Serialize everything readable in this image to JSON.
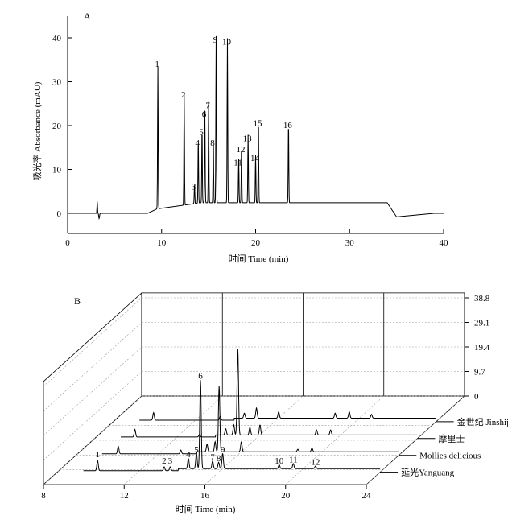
{
  "chart_data": [
    {
      "type": "line",
      "panel_label": "A",
      "xlabel": "时间 Time (min)",
      "ylabel": "吸光率 Absorbance (mAU)",
      "xlim": [
        0,
        40
      ],
      "ylim": [
        -5,
        45
      ],
      "x_ticks": [
        "0",
        "10",
        "20",
        "30",
        "40"
      ],
      "y_ticks": [
        "0",
        "10",
        "20",
        "30",
        "40"
      ],
      "peaks": [
        {
          "label": "1",
          "t": 9.6,
          "h": 32.5
        },
        {
          "label": "2",
          "t": 12.4,
          "h": 25.5
        },
        {
          "label": "3",
          "t": 13.5,
          "h": 4.5
        },
        {
          "label": "4",
          "t": 13.9,
          "h": 14.5
        },
        {
          "label": "5",
          "t": 14.3,
          "h": 17
        },
        {
          "label": "6",
          "t": 14.6,
          "h": 21
        },
        {
          "label": "7",
          "t": 15.0,
          "h": 23
        },
        {
          "label": "8",
          "t": 15.5,
          "h": 14.5
        },
        {
          "label": "9",
          "t": 15.8,
          "h": 38
        },
        {
          "label": "10",
          "t": 17.0,
          "h": 37.5
        },
        {
          "label": "11",
          "t": 18.2,
          "h": 10
        },
        {
          "label": "12",
          "t": 18.5,
          "h": 13
        },
        {
          "label": "13",
          "t": 19.2,
          "h": 15.5
        },
        {
          "label": "14",
          "t": 20.0,
          "h": 11
        },
        {
          "label": "15",
          "t": 20.3,
          "h": 19
        },
        {
          "label": "16",
          "t": 23.5,
          "h": 18.5
        }
      ]
    },
    {
      "type": "line",
      "panel_label": "B",
      "xlabel": "时间 Time (min)",
      "xlim": [
        8,
        24
      ],
      "x_ticks": [
        "8",
        "12",
        "16",
        "20",
        "24"
      ],
      "z_ticks": [
        "0",
        "9.7",
        "19.4",
        "29.1",
        "38.8"
      ],
      "series": [
        {
          "name": "延光Yanguang",
          "peaks": [
            {
              "label": "1",
              "t": 10.0,
              "h": 4
            },
            {
              "label": "2",
              "t": 13.3,
              "h": 1.5
            },
            {
              "label": "3",
              "t": 13.6,
              "h": 1.5
            },
            {
              "label": "4",
              "t": 14.5,
              "h": 4
            },
            {
              "label": "5",
              "t": 14.9,
              "h": 6
            },
            {
              "label": "6",
              "t": 15.1,
              "h": 35
            },
            {
              "label": "7",
              "t": 15.7,
              "h": 3
            },
            {
              "label": "8",
              "t": 16.0,
              "h": 2.5
            },
            {
              "label": "9",
              "t": 16.2,
              "h": 6
            },
            {
              "label": "10",
              "t": 19.0,
              "h": 1.5
            },
            {
              "label": "11",
              "t": 19.7,
              "h": 2
            },
            {
              "label": "12",
              "t": 20.8,
              "h": 1
            }
          ]
        },
        {
          "name": "Mollies delicious",
          "peaks": [
            {
              "t": 10.1,
              "h": 3
            },
            {
              "t": 13.2,
              "h": 1.5
            },
            {
              "t": 14.5,
              "h": 3
            },
            {
              "t": 14.9,
              "h": 4
            },
            {
              "t": 15.1,
              "h": 26
            },
            {
              "t": 16.2,
              "h": 4
            },
            {
              "t": 19.0,
              "h": 1
            },
            {
              "t": 19.7,
              "h": 1.5
            }
          ]
        },
        {
          "name": "摩里士",
          "peaks": [
            {
              "t": 10.0,
              "h": 3
            },
            {
              "t": 13.2,
              "h": 1
            },
            {
              "t": 14.5,
              "h": 2.5
            },
            {
              "t": 14.9,
              "h": 4
            },
            {
              "t": 15.1,
              "h": 34
            },
            {
              "t": 15.7,
              "h": 3
            },
            {
              "t": 16.2,
              "h": 4
            },
            {
              "t": 19.0,
              "h": 2
            },
            {
              "t": 19.7,
              "h": 2
            }
          ]
        },
        {
          "name": "金世纪 Jinshiji",
          "peaks": [
            {
              "t": 10.0,
              "h": 3
            },
            {
              "t": 13.3,
              "h": 1.5
            },
            {
              "t": 14.5,
              "h": 2
            },
            {
              "t": 15.1,
              "h": 4
            },
            {
              "t": 16.2,
              "h": 2.5
            },
            {
              "t": 19.0,
              "h": 2
            },
            {
              "t": 19.7,
              "h": 2.5
            },
            {
              "t": 20.8,
              "h": 1.5
            }
          ]
        }
      ]
    }
  ]
}
